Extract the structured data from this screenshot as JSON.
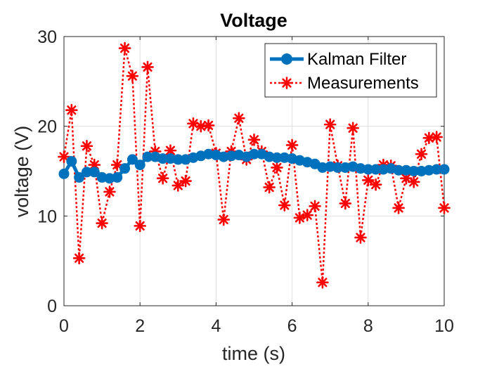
{
  "chart_data": {
    "type": "line",
    "title": "Voltage",
    "xlabel": "time (s)",
    "ylabel": "voltage (V)",
    "xlim": [
      0,
      10
    ],
    "ylim": [
      0,
      30
    ],
    "x_ticks": [
      0,
      2,
      4,
      6,
      8,
      10
    ],
    "y_ticks": [
      0,
      10,
      20,
      30
    ],
    "grid": true,
    "legend_position": "top-right",
    "x": [
      0,
      0.2,
      0.4,
      0.6,
      0.8,
      1.0,
      1.2,
      1.4,
      1.6,
      1.8,
      2.0,
      2.2,
      2.4,
      2.6,
      2.8,
      3.0,
      3.2,
      3.4,
      3.6,
      3.8,
      4.0,
      4.2,
      4.4,
      4.6,
      4.8,
      5.0,
      5.2,
      5.4,
      5.6,
      5.8,
      6.0,
      6.2,
      6.4,
      6.6,
      6.8,
      7.0,
      7.2,
      7.4,
      7.6,
      7.8,
      8.0,
      8.2,
      8.4,
      8.6,
      8.8,
      9.0,
      9.2,
      9.4,
      9.6,
      9.8,
      10.0
    ],
    "series": [
      {
        "name": "Kalman Filter",
        "color": "#0072BD",
        "style": "solid-circle",
        "values": [
          14.7,
          16.1,
          14.3,
          14.9,
          14.9,
          14.3,
          14.2,
          14.3,
          15.3,
          16.3,
          15.7,
          16.6,
          16.6,
          16.4,
          16.4,
          16.3,
          16.3,
          16.5,
          16.7,
          16.9,
          16.8,
          16.6,
          16.7,
          16.8,
          16.6,
          16.9,
          16.9,
          16.6,
          16.5,
          16.5,
          16.4,
          16.2,
          16.0,
          15.8,
          15.4,
          15.5,
          15.4,
          15.4,
          15.5,
          15.3,
          15.2,
          15.2,
          15.2,
          15.3,
          15.1,
          15.1,
          15.0,
          15.0,
          15.1,
          15.2,
          15.2
        ]
      },
      {
        "name": "Measurements",
        "color": "#FF0000",
        "style": "dotted-star",
        "values": [
          16.6,
          21.8,
          5.3,
          17.8,
          15.7,
          9.2,
          12.7,
          15.7,
          28.7,
          25.6,
          8.9,
          26.6,
          17.2,
          14.2,
          17.3,
          13.4,
          13.9,
          20.3,
          20.0,
          20.1,
          17.0,
          9.6,
          17.2,
          20.9,
          16.3,
          18.5,
          17.2,
          13.2,
          15.4,
          11.2,
          17.9,
          9.8,
          10.1,
          11.1,
          2.6,
          20.2,
          15.6,
          11.4,
          19.8,
          7.6,
          14.0,
          13.5,
          15.7,
          15.6,
          10.9,
          14.2,
          13.8,
          16.9,
          18.7,
          18.8,
          10.9
        ]
      }
    ]
  }
}
